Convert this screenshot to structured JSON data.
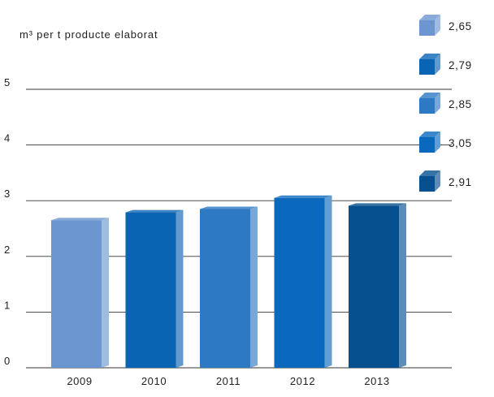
{
  "chart_data": {
    "type": "bar",
    "ylabel": "m³ per t producte elaborat",
    "categories": [
      "2009",
      "2010",
      "2011",
      "2012",
      "2013"
    ],
    "values": [
      2.65,
      2.79,
      2.85,
      3.05,
      2.91
    ],
    "yticks": [
      0,
      1,
      2,
      3,
      4,
      5
    ],
    "ylim": [
      0,
      5
    ],
    "grid": true,
    "legend": {
      "placement": "top-right",
      "entries": [
        "2,65",
        "2,79",
        "2,85",
        "3,05",
        "2,91"
      ]
    },
    "colors": [
      "#6b96cf",
      "#0a64b4",
      "#2d79c3",
      "#0b69bd",
      "#06508f"
    ]
  }
}
